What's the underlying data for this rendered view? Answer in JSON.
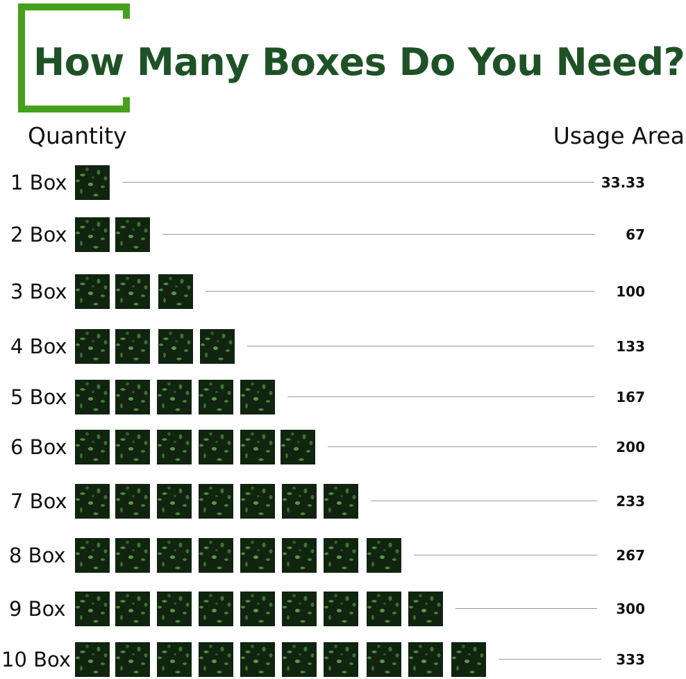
{
  "title": "How Many Boxes Do You Need?",
  "headers": {
    "quantity": "Quantity",
    "usage_area": "Usage Area"
  },
  "colors": {
    "title": "#1e5226",
    "bracket": "#44a11c",
    "tile": "#10240f",
    "line": "#9a9a9a"
  },
  "tile_icon": "boxwood-tile-icon",
  "rows": [
    {
      "label": "1 Box",
      "boxes": 1,
      "area": "33.33"
    },
    {
      "label": "2 Box",
      "boxes": 2,
      "area": "67"
    },
    {
      "label": "3 Box",
      "boxes": 3,
      "area": "100"
    },
    {
      "label": "4 Box",
      "boxes": 4,
      "area": "133"
    },
    {
      "label": "5 Box",
      "boxes": 5,
      "area": "167"
    },
    {
      "label": "6 Box",
      "boxes": 6,
      "area": "200"
    },
    {
      "label": "7 Box",
      "boxes": 7,
      "area": "233"
    },
    {
      "label": "8 Box",
      "boxes": 8,
      "area": "267"
    },
    {
      "label": "9 Box",
      "boxes": 9,
      "area": "300"
    },
    {
      "label": "10 Box",
      "boxes": 10,
      "area": "333"
    }
  ]
}
